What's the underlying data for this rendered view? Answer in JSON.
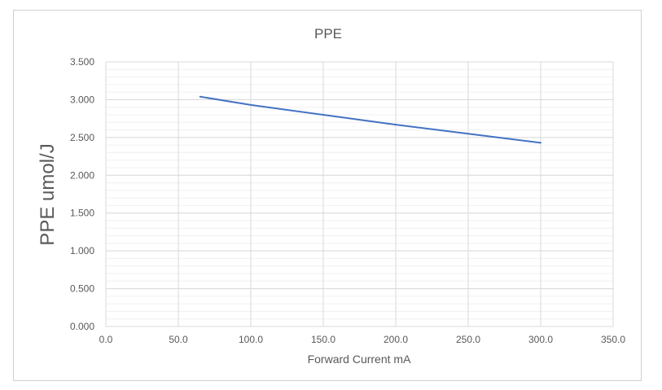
{
  "chart_data": {
    "type": "line",
    "title": "PPE",
    "xlabel": "Forward Current mA",
    "ylabel": "PPE umol/J",
    "xlim": [
      0,
      350
    ],
    "ylim": [
      0,
      3.5
    ],
    "x_ticks": [
      "0.0",
      "50.0",
      "100.0",
      "150.0",
      "200.0",
      "250.0",
      "300.0",
      "350.0"
    ],
    "y_ticks": [
      "0.000",
      "0.500",
      "1.000",
      "1.500",
      "2.000",
      "2.500",
      "3.000",
      "3.500"
    ],
    "grid": true,
    "series": [
      {
        "color": "#4472c4",
        "x": [
          65,
          100,
          150,
          200,
          250,
          300
        ],
        "y": [
          3.04,
          2.93,
          2.8,
          2.67,
          2.55,
          2.43
        ]
      }
    ]
  }
}
